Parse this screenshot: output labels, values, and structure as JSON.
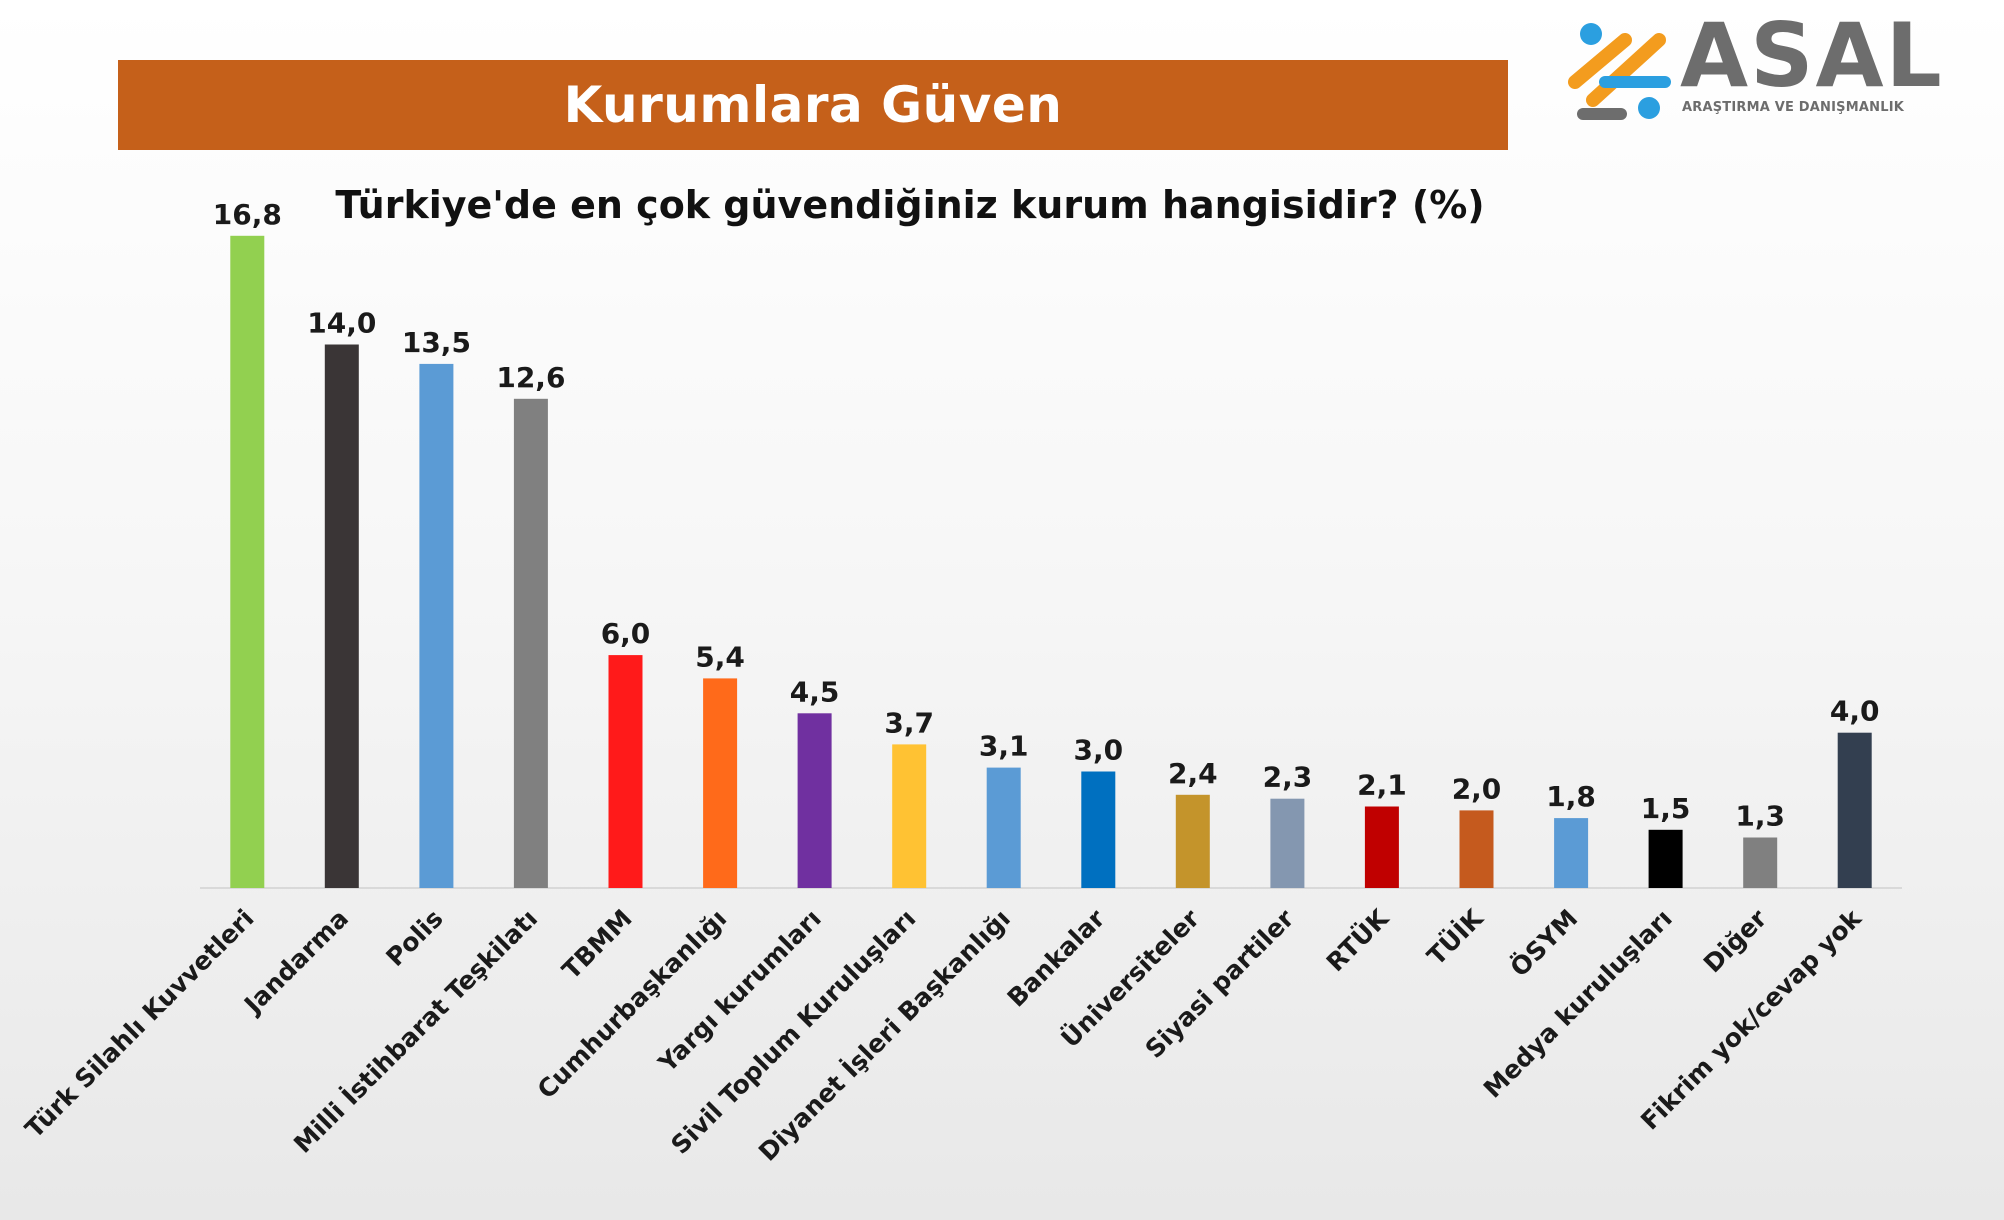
{
  "banner": {
    "title": "Kurumlara Güven"
  },
  "logo": {
    "wordmark": "ASAL",
    "tagline": "ARAŞTIRMA VE DANIŞMANLIK",
    "colors": {
      "orange": "#f39c1e",
      "blue": "#2b9fe0",
      "gray": "#6d6d6d"
    }
  },
  "colors": {
    "banner": "#c5601a",
    "axis": "#d9d9d9",
    "label": "#1a1a1a"
  },
  "chart_data": {
    "type": "bar",
    "title": "Türkiye'de en çok güvendiğiniz kurum hangisidir? (%)",
    "xlabel": "",
    "ylabel": "",
    "ylim": [
      0,
      17
    ],
    "grid": false,
    "legend": "none",
    "categories": [
      "Türk Silahlı Kuvvetleri",
      "Jandarma",
      "Polis",
      "Milli İstihbarat Teşkilatı",
      "TBMM",
      "Cumhurbaşkanlığı",
      "Yargı kurumları",
      "Sivil Toplum Kuruluşları",
      "Diyanet İşleri Başkanlığı",
      "Bankalar",
      "Üniversiteler",
      "Siyasi partiler",
      "RTÜK",
      "TÜİK",
      "ÖSYM",
      "Medya kuruluşları",
      "Diğer",
      "Fikrim yok/cevap yok"
    ],
    "values": [
      16.8,
      14.0,
      13.5,
      12.6,
      6.0,
      5.4,
      4.5,
      3.7,
      3.1,
      3.0,
      2.4,
      2.3,
      2.1,
      2.0,
      1.8,
      1.5,
      1.3,
      4.0
    ],
    "value_labels": [
      "16,8",
      "14,0",
      "13,5",
      "12,6",
      "6,0",
      "5,4",
      "4,5",
      "3,7",
      "3,1",
      "3,0",
      "2,4",
      "2,3",
      "2,1",
      "2,0",
      "1,8",
      "1,5",
      "1,3",
      "4,0"
    ],
    "bar_colors": [
      "#92d050",
      "#3a3536",
      "#5b9bd5",
      "#808080",
      "#ff1a1a",
      "#ff6a1a",
      "#7030a0",
      "#ffc233",
      "#5b9bd5",
      "#0070c0",
      "#c4942b",
      "#8497b0",
      "#c00000",
      "#c55a1e",
      "#5b9bd5",
      "#000000",
      "#808080",
      "#333f50"
    ]
  }
}
